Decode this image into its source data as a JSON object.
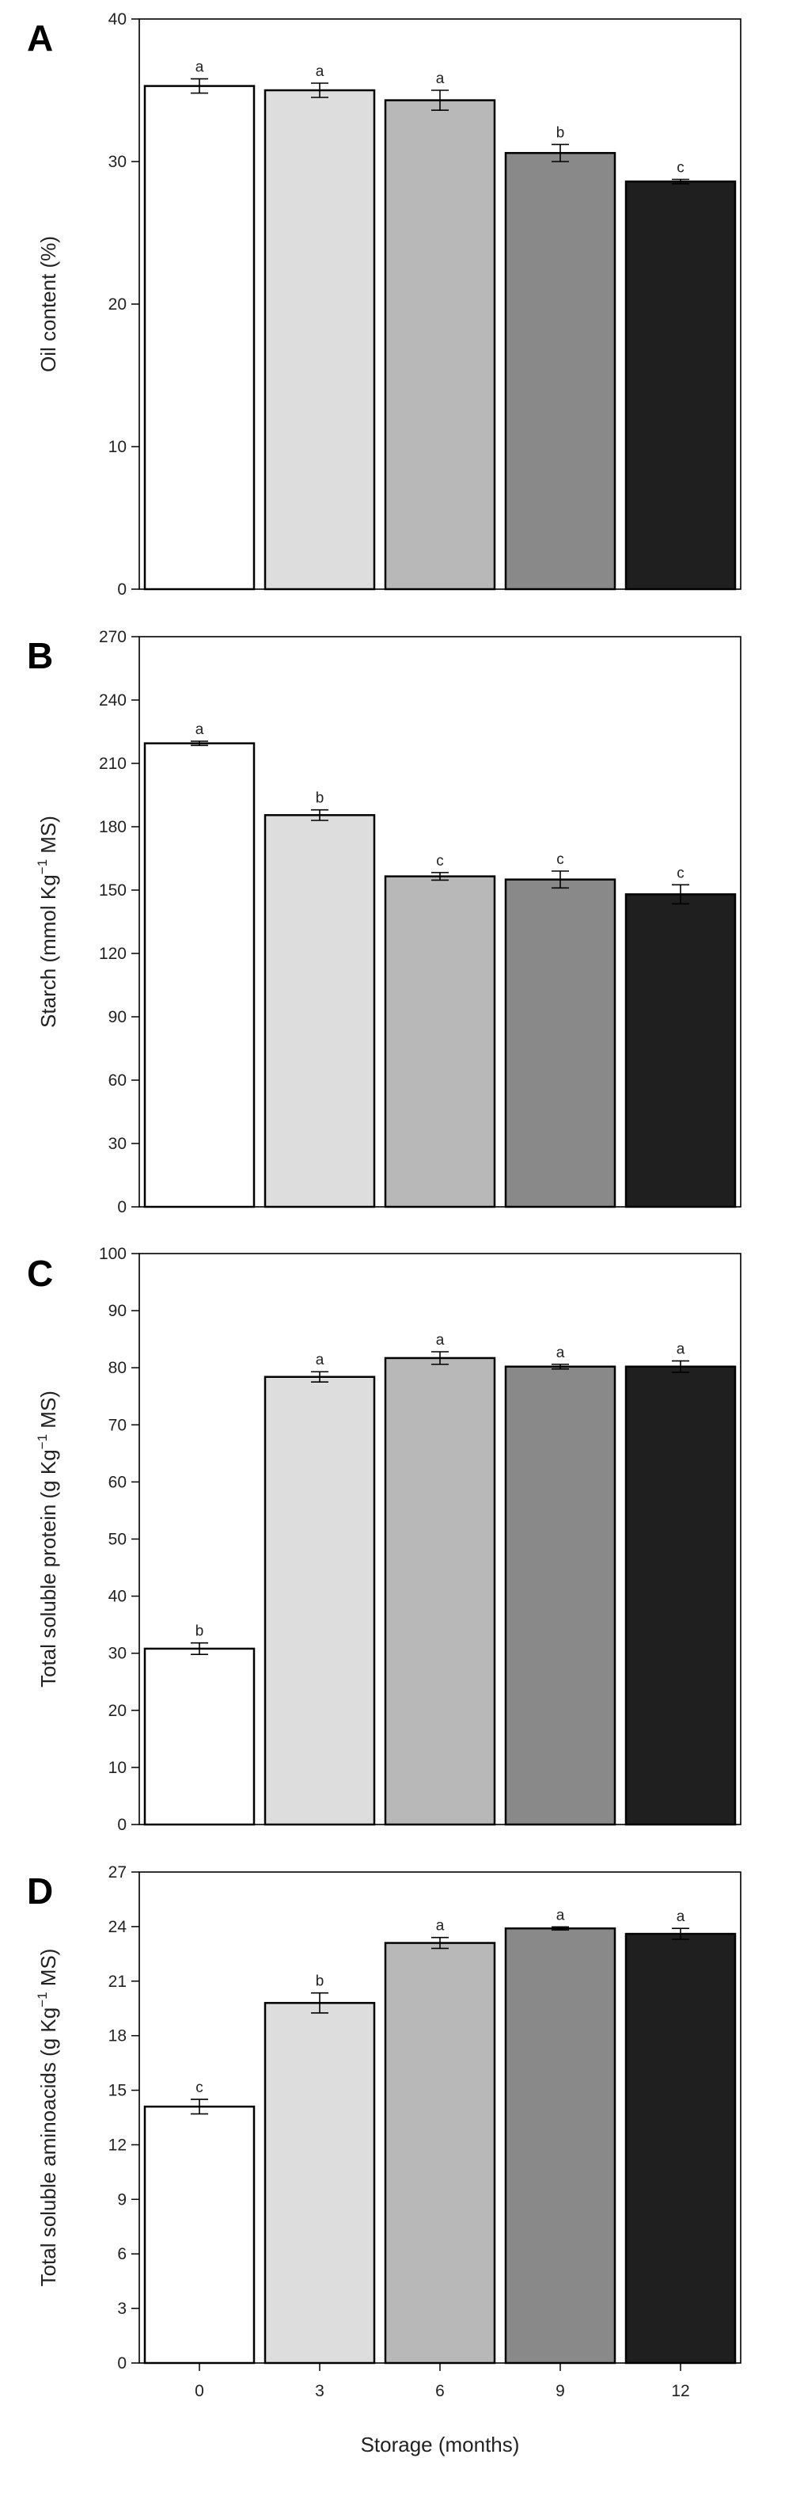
{
  "chart_data": [
    {
      "type": "bar",
      "panel": "A",
      "ylabel": "Oil content (%)",
      "categories": [
        "0",
        "3",
        "6",
        "9",
        "12"
      ],
      "values": [
        35.3,
        35.0,
        34.3,
        30.6,
        28.6
      ],
      "errors": [
        0.5,
        0.5,
        0.7,
        0.6,
        0.15
      ],
      "sig_letters": [
        "a",
        "a",
        "a",
        "b",
        "c"
      ],
      "colors": [
        "#ffffff",
        "#dddddd",
        "#b8b8b8",
        "#898989",
        "#1f1f1f"
      ],
      "ylim": [
        0,
        40
      ],
      "yticks": [
        0,
        10,
        20,
        30,
        40
      ],
      "show_xticks": false
    },
    {
      "type": "bar",
      "panel": "B",
      "ylabel": {
        "pre": "Starch (mmol Kg",
        "sup": "−1",
        "post": " MS)"
      },
      "categories": [
        "0",
        "3",
        "6",
        "9",
        "12"
      ],
      "values": [
        219.5,
        185.5,
        156.5,
        155.0,
        148.0
      ],
      "errors": [
        1.0,
        2.5,
        1.8,
        4.0,
        4.5
      ],
      "sig_letters": [
        "a",
        "b",
        "c",
        "c",
        "c"
      ],
      "colors": [
        "#ffffff",
        "#dddddd",
        "#b8b8b8",
        "#898989",
        "#1f1f1f"
      ],
      "ylim": [
        0,
        270
      ],
      "yticks": [
        0,
        30,
        60,
        90,
        120,
        150,
        180,
        210,
        240,
        270
      ],
      "show_xticks": false
    },
    {
      "type": "bar",
      "panel": "C",
      "ylabel": {
        "pre": "Total soluble protein (g Kg",
        "sup": "−1",
        "post": " MS)"
      },
      "categories": [
        "0",
        "3",
        "6",
        "9",
        "12"
      ],
      "values": [
        30.8,
        78.4,
        81.7,
        80.2,
        80.2
      ],
      "errors": [
        1.0,
        0.9,
        1.1,
        0.4,
        1.0
      ],
      "sig_letters": [
        "b",
        "a",
        "a",
        "a",
        "a"
      ],
      "colors": [
        "#ffffff",
        "#dddddd",
        "#b8b8b8",
        "#898989",
        "#1f1f1f"
      ],
      "ylim": [
        0,
        100
      ],
      "yticks": [
        0,
        10,
        20,
        30,
        40,
        50,
        60,
        70,
        80,
        90,
        100
      ],
      "show_xticks": false
    },
    {
      "type": "bar",
      "panel": "D",
      "ylabel": {
        "pre": "Total soluble aminoacids (g Kg",
        "sup": "−1",
        "post": " MS)"
      },
      "xlabel": "Storage (months)",
      "categories": [
        "0",
        "3",
        "6",
        "9",
        "12"
      ],
      "values": [
        14.1,
        19.8,
        23.1,
        23.9,
        23.6
      ],
      "errors": [
        0.4,
        0.55,
        0.3,
        0.08,
        0.3
      ],
      "sig_letters": [
        "c",
        "b",
        "a",
        "a",
        "a"
      ],
      "colors": [
        "#ffffff",
        "#dddddd",
        "#b8b8b8",
        "#898989",
        "#1f1f1f"
      ],
      "ylim": [
        0,
        27
      ],
      "yticks": [
        0,
        3,
        6,
        9,
        12,
        15,
        18,
        21,
        24,
        27
      ],
      "show_xticks": true
    }
  ]
}
